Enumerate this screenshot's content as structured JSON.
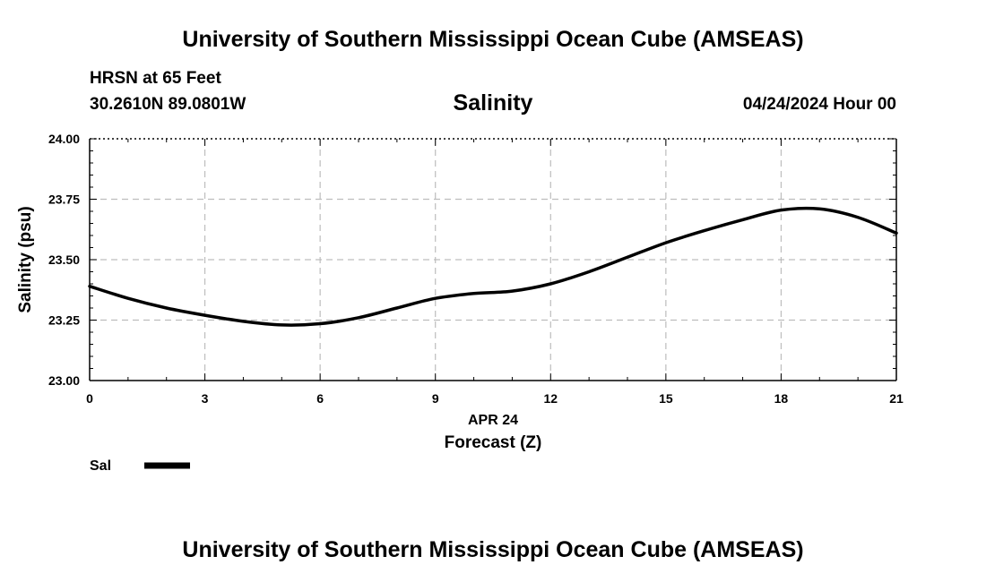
{
  "header": {
    "title": "University of Southern Mississippi Ocean Cube (AMSEAS)",
    "station": "HRSN at 65 Feet",
    "coords": "30.2610N  89.0801W",
    "variable": "Salinity",
    "datetime": "04/24/2024 Hour 00"
  },
  "footer": {
    "title": "University of Southern Mississippi Ocean Cube (AMSEAS)"
  },
  "chart_data": {
    "type": "line",
    "title": "Salinity",
    "xlabel": "Forecast (Z)",
    "xsublabel": "APR 24",
    "ylabel": "Salinity (psu)",
    "xlim": [
      0,
      21
    ],
    "ylim": [
      23.0,
      24.0
    ],
    "xticks": [
      0,
      3,
      6,
      9,
      12,
      15,
      18,
      21
    ],
    "xtick_labels": [
      "0",
      "3",
      "6",
      "9",
      "12",
      "15",
      "18",
      "21"
    ],
    "yticks": [
      23.0,
      23.25,
      23.5,
      23.75,
      24.0
    ],
    "ytick_labels": [
      "23.00",
      "23.25",
      "23.50",
      "23.75",
      "24.00"
    ],
    "grid": true,
    "series": [
      {
        "name": "Sal",
        "color": "#000000",
        "x": [
          0,
          1,
          2,
          3,
          4,
          5,
          6,
          7,
          8,
          9,
          10,
          11,
          12,
          13,
          14,
          15,
          16,
          17,
          18,
          19,
          20,
          21
        ],
        "values": [
          23.39,
          23.34,
          23.3,
          23.27,
          23.245,
          23.23,
          23.235,
          23.26,
          23.3,
          23.34,
          23.36,
          23.37,
          23.4,
          23.45,
          23.51,
          23.57,
          23.62,
          23.665,
          23.705,
          23.71,
          23.675,
          23.61
        ]
      }
    ],
    "legend": {
      "label": "Sal",
      "position": "bottom-left"
    }
  }
}
